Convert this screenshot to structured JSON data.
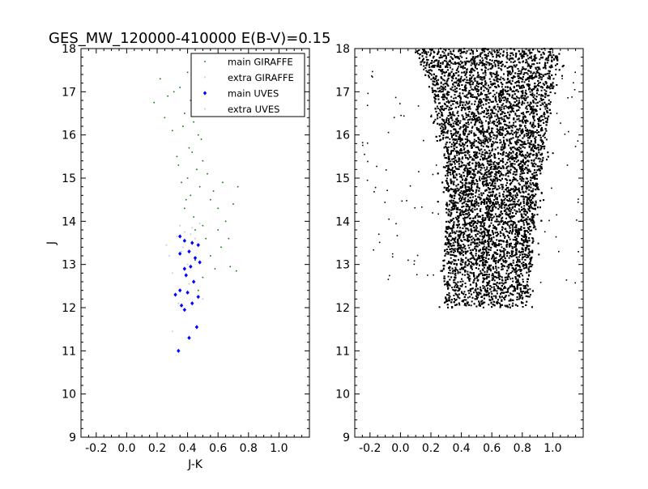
{
  "chart_data": [
    {
      "type": "scatter",
      "title": "GES_MW_120000-410000 E(B-V)=0.15",
      "xlabel": "J-K",
      "ylabel": "J",
      "xlim": [
        -0.3,
        1.2
      ],
      "ylim": [
        18,
        9
      ],
      "y_inverted": true,
      "x_ticks": [
        "-0.2",
        "0.0",
        "0.2",
        "0.4",
        "0.6",
        "0.8",
        "1.0"
      ],
      "y_ticks": [
        "9",
        "10",
        "11",
        "12",
        "13",
        "14",
        "15",
        "16",
        "17",
        "18"
      ],
      "legend_position": "top-right",
      "series": [
        {
          "name": "main GIRAFFE",
          "color": "#007f00",
          "marker": "dot",
          "points": [
            [
              0.47,
              12.4
            ],
            [
              0.5,
              12.7
            ],
            [
              0.58,
              12.9
            ],
            [
              0.55,
              13.2
            ],
            [
              0.62,
              13.4
            ],
            [
              0.67,
              13.6
            ],
            [
              0.72,
              12.85
            ],
            [
              0.45,
              13.1
            ],
            [
              0.52,
              13.6
            ],
            [
              0.7,
              14.4
            ],
            [
              0.73,
              14.8
            ],
            [
              0.63,
              14.9
            ],
            [
              0.57,
              14.7
            ],
            [
              0.5,
              13.9
            ],
            [
              0.44,
              14.1
            ],
            [
              0.38,
              14.3
            ],
            [
              0.42,
              14.6
            ],
            [
              0.36,
              14.9
            ],
            [
              0.46,
              15.2
            ],
            [
              0.33,
              15.5
            ],
            [
              0.41,
              15.7
            ],
            [
              0.49,
              15.9
            ],
            [
              0.3,
              16.1
            ],
            [
              0.44,
              16.3
            ],
            [
              0.38,
              16.5
            ],
            [
              0.52,
              16.7
            ],
            [
              0.27,
              16.9
            ],
            [
              0.35,
              17.1
            ],
            [
              0.46,
              17.2
            ],
            [
              0.4,
              17.45
            ],
            [
              0.22,
              17.3
            ],
            [
              0.18,
              16.75
            ],
            [
              0.6,
              14.3
            ],
            [
              0.65,
              14.0
            ],
            [
              0.55,
              14.5
            ],
            [
              0.48,
              14.8
            ],
            [
              0.4,
              15.0
            ],
            [
              0.34,
              15.3
            ],
            [
              0.43,
              15.6
            ],
            [
              0.47,
              16.0
            ],
            [
              0.37,
              16.2
            ],
            [
              0.42,
              16.8
            ],
            [
              0.31,
              17.0
            ],
            [
              0.25,
              16.4
            ],
            [
              0.5,
              15.4
            ],
            [
              0.53,
              15.1
            ],
            [
              0.39,
              14.5
            ],
            [
              0.45,
              13.8
            ],
            [
              0.68,
              12.95
            ],
            [
              0.6,
              13.8
            ]
          ]
        },
        {
          "name": "extra GIRAFFE",
          "color": "#a8c8e8",
          "marker": "dot",
          "points": [
            [
              0.3,
              11.45
            ],
            [
              0.34,
              12.1
            ],
            [
              0.3,
              12.8
            ],
            [
              0.26,
              13.45
            ],
            [
              0.33,
              13.65
            ],
            [
              0.38,
              13.75
            ],
            [
              0.43,
              13.85
            ],
            [
              0.48,
              13.95
            ],
            [
              0.36,
              13.3
            ],
            [
              0.41,
              12.55
            ],
            [
              0.28,
              13.2
            ],
            [
              0.45,
              13.6
            ],
            [
              0.35,
              13.9
            ],
            [
              0.5,
              12.2
            ]
          ]
        },
        {
          "name": "main UVES",
          "color": "#0000ff",
          "marker": "diamond",
          "points": [
            [
              0.34,
              11.0
            ],
            [
              0.41,
              11.3
            ],
            [
              0.46,
              11.55
            ],
            [
              0.36,
              12.05
            ],
            [
              0.38,
              11.95
            ],
            [
              0.43,
              12.1
            ],
            [
              0.47,
              12.25
            ],
            [
              0.32,
              12.3
            ],
            [
              0.35,
              12.4
            ],
            [
              0.4,
              12.35
            ],
            [
              0.44,
              12.6
            ],
            [
              0.38,
              12.9
            ],
            [
              0.42,
              12.95
            ],
            [
              0.48,
              13.05
            ],
            [
              0.35,
              13.25
            ],
            [
              0.41,
              13.3
            ],
            [
              0.47,
              13.45
            ],
            [
              0.38,
              13.55
            ],
            [
              0.43,
              13.5
            ],
            [
              0.35,
              13.65
            ],
            [
              0.45,
              13.15
            ],
            [
              0.39,
              12.75
            ]
          ]
        },
        {
          "name": "extra UVES",
          "color": "#a8c8e8",
          "marker": "dot",
          "points": [
            [
              0.4,
              13.0
            ],
            [
              0.37,
              13.4
            ],
            [
              0.42,
              13.7
            ]
          ]
        }
      ]
    },
    {
      "type": "scatter",
      "title": "",
      "xlabel": "",
      "ylabel": "",
      "xlim": [
        -0.3,
        1.2
      ],
      "ylim": [
        18,
        9
      ],
      "y_inverted": true,
      "x_ticks": [
        "-0.2",
        "0.0",
        "0.2",
        "0.4",
        "0.6",
        "0.8",
        "1.0"
      ],
      "y_ticks": [
        "9",
        "10",
        "11",
        "12",
        "13",
        "14",
        "15",
        "16",
        "17",
        "18"
      ],
      "series": [
        {
          "name": "",
          "color": "#000000",
          "marker": "dot",
          "density_bands": [
            {
              "j": 12.0,
              "jk_min": 0.3,
              "jk_max": 0.83
            },
            {
              "j": 13.0,
              "jk_min": 0.28,
              "jk_max": 0.86
            },
            {
              "j": 14.0,
              "jk_min": 0.3,
              "jk_max": 0.88
            },
            {
              "j": 15.0,
              "jk_min": 0.3,
              "jk_max": 0.92
            },
            {
              "j": 16.0,
              "jk_min": 0.27,
              "jk_max": 0.96
            },
            {
              "j": 17.0,
              "jk_min": 0.2,
              "jk_max": 1.0
            },
            {
              "j": 18.0,
              "jk_min": 0.1,
              "jk_max": 1.05
            }
          ],
          "point_count": 9000,
          "scatter_spread": 0.06
        }
      ]
    }
  ]
}
